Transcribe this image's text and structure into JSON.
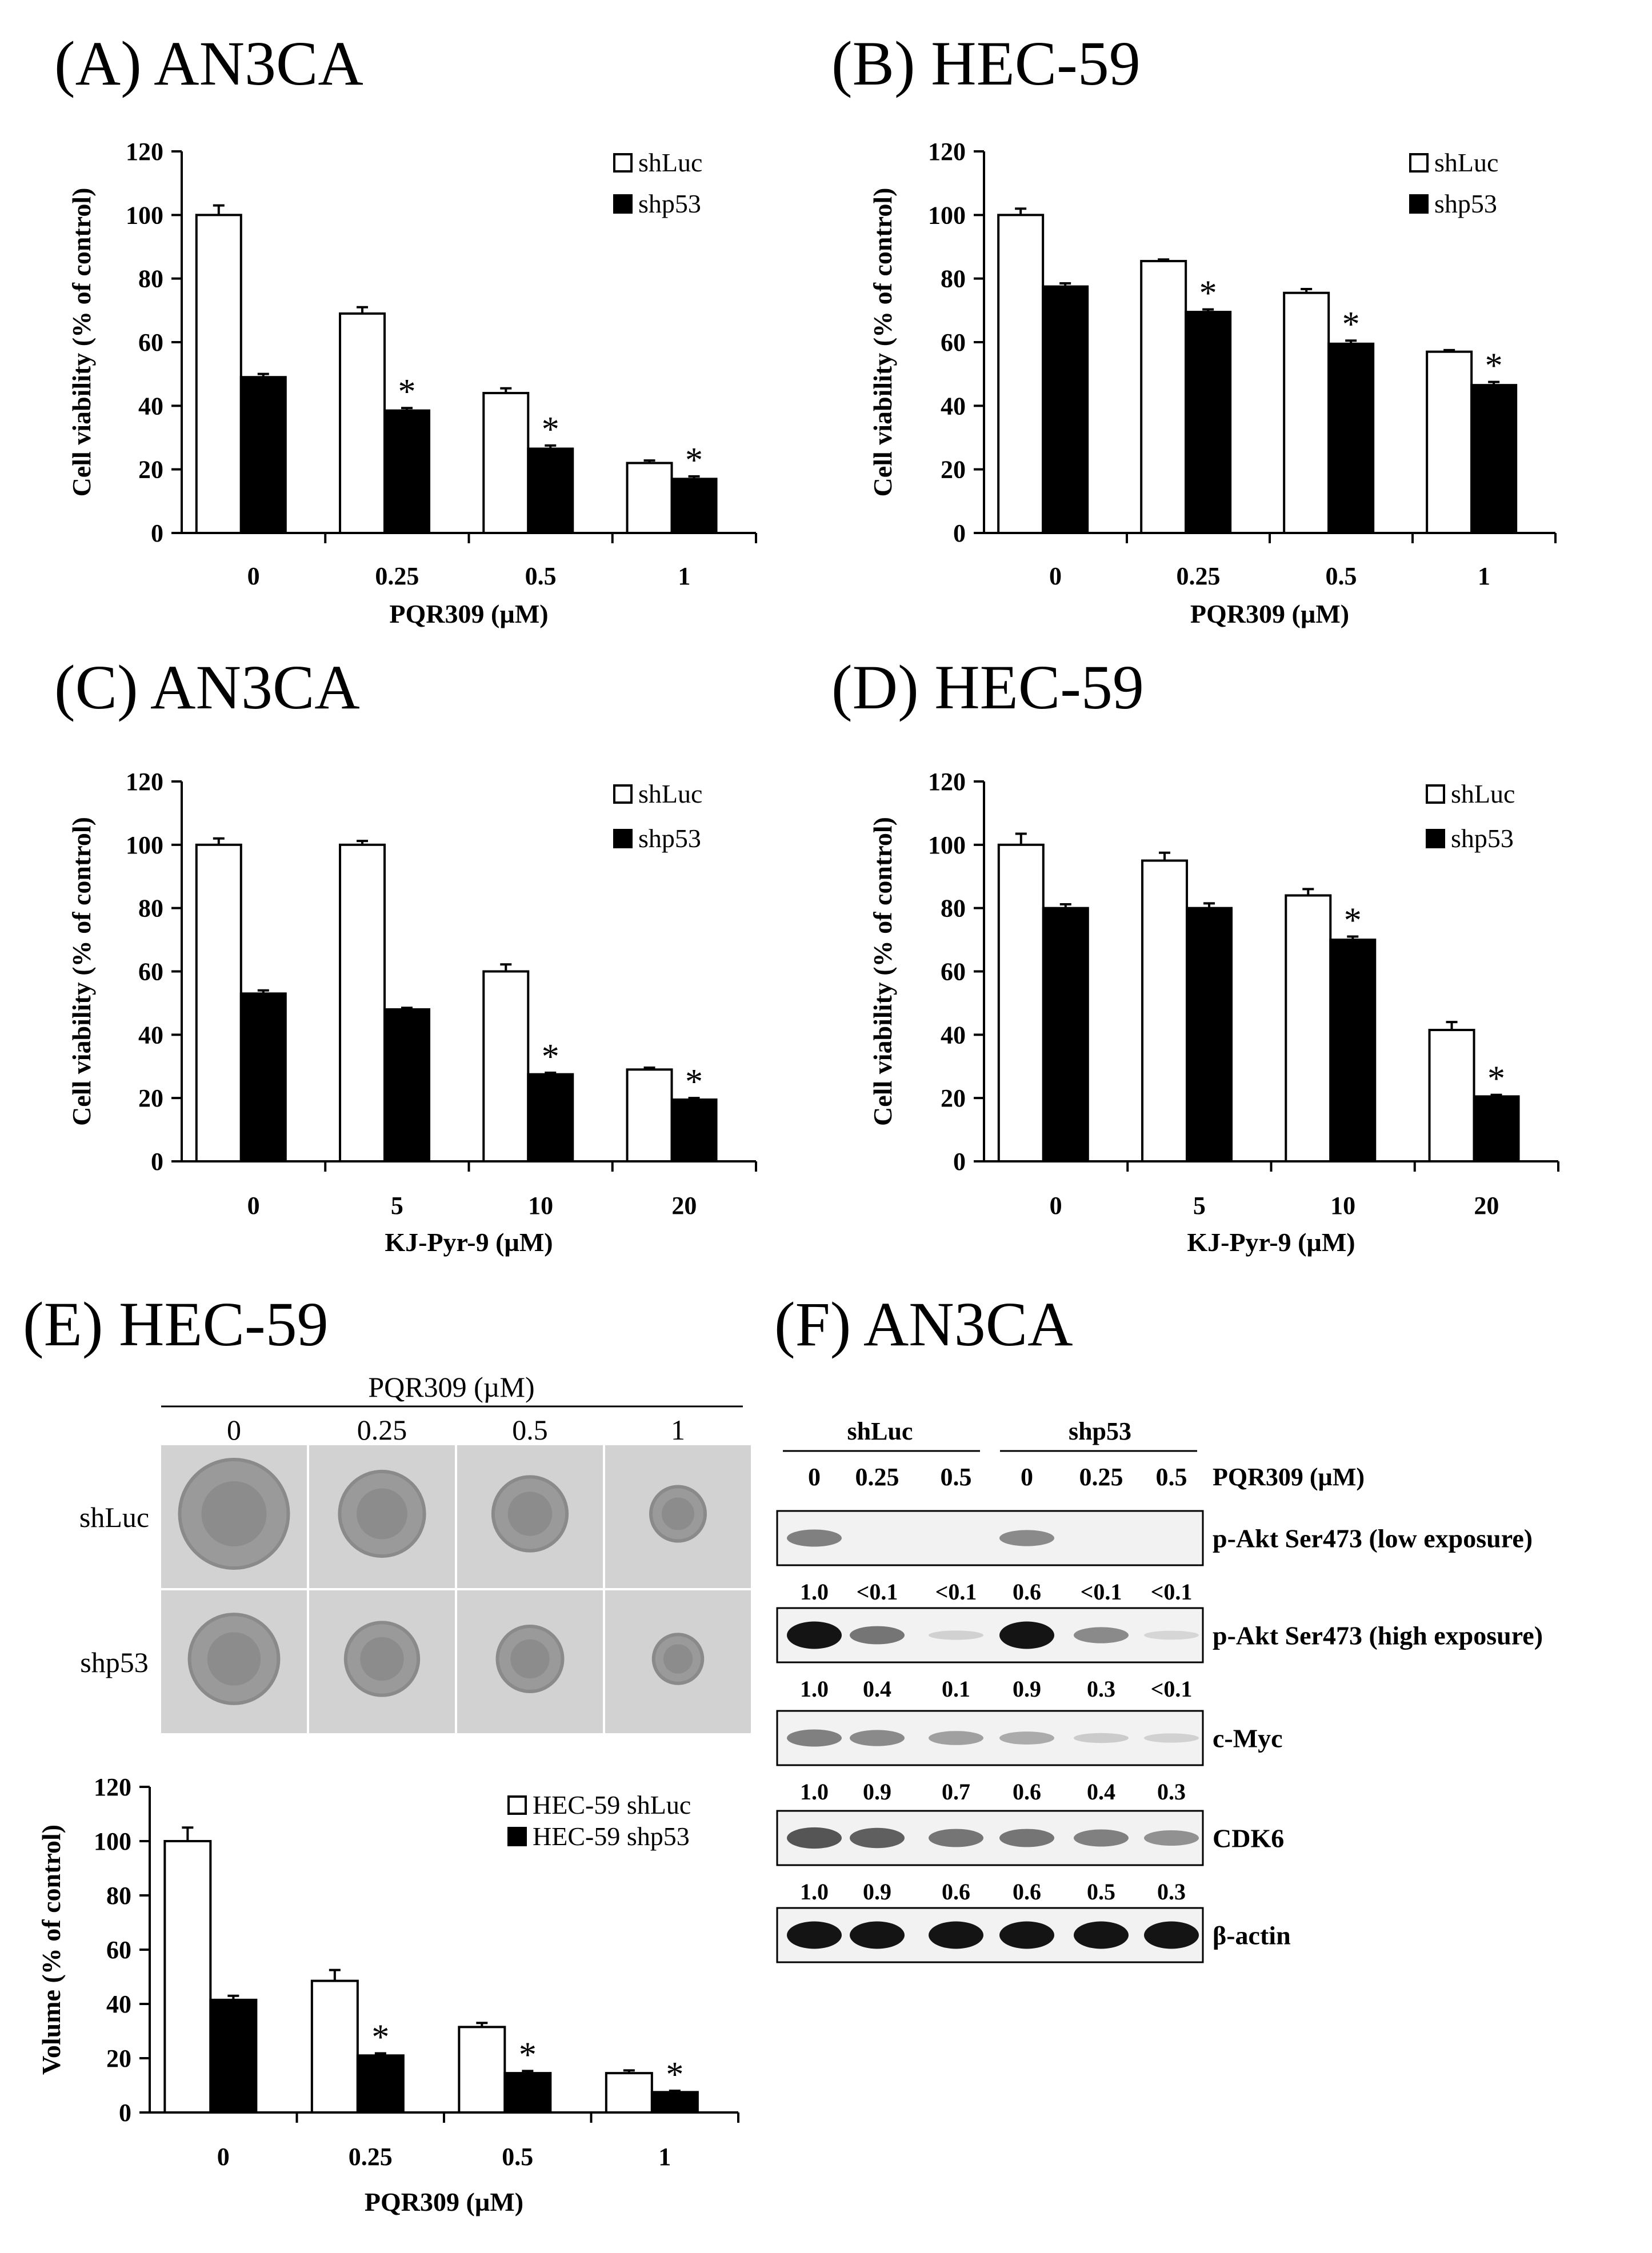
{
  "colors": {
    "bar_shLuc": "#ffffff",
    "bar_shp53": "#000000",
    "stroke": "#000000",
    "blot_background": "#f2f2f2",
    "blot_band": "#1e1e1e"
  },
  "panel_labels": [
    "(A) AN3CA",
    "(B) HEC-59",
    "(C) AN3CA",
    "(D) HEC-59",
    "(E) HEC-59",
    "(F) AN3CA"
  ],
  "significance_mark": "*",
  "chart_data": [
    {
      "type": "bar",
      "panel": "(A) AN3CA",
      "categories": [
        "0",
        "0.25",
        "0.5",
        "1"
      ],
      "xlabel": "PQR309 (µM)",
      "ylabel": "Cell viability (% of control)",
      "ylim": [
        0,
        120
      ],
      "yticks": [
        "0",
        "20",
        "40",
        "60",
        "80",
        "100",
        "120"
      ],
      "legend_position": "top-right",
      "series": [
        {
          "name": "shLuc",
          "values": [
            100,
            69,
            44,
            22
          ],
          "errors": [
            3,
            2,
            1.5,
            0.8
          ]
        },
        {
          "name": "shp53",
          "values": [
            49,
            38.5,
            26.5,
            17
          ],
          "errors": [
            1,
            0.8,
            1,
            0.8
          ]
        }
      ],
      "significant": [
        false,
        true,
        true,
        true
      ]
    },
    {
      "type": "bar",
      "panel": "(B) HEC-59",
      "categories": [
        "0",
        "0.25",
        "0.5",
        "1"
      ],
      "xlabel": "PQR309 (µM)",
      "ylabel": "Cell viability (% of control)",
      "ylim": [
        0,
        120
      ],
      "yticks": [
        "0",
        "20",
        "40",
        "60",
        "80",
        "100",
        "120"
      ],
      "legend_position": "top-right",
      "series": [
        {
          "name": "shLuc",
          "values": [
            100,
            85.5,
            75.5,
            57
          ],
          "errors": [
            2,
            0.5,
            1.2,
            0.5
          ]
        },
        {
          "name": "shp53",
          "values": [
            77.5,
            69.5,
            59.5,
            46.5
          ],
          "errors": [
            1,
            0.8,
            1,
            1
          ]
        }
      ],
      "significant": [
        false,
        true,
        true,
        true
      ]
    },
    {
      "type": "bar",
      "panel": "(C) AN3CA",
      "categories": [
        "0",
        "5",
        "10",
        "20"
      ],
      "xlabel": "KJ-Pyr-9 (µM)",
      "ylabel": "Cell viability (% of control)",
      "ylim": [
        0,
        120
      ],
      "yticks": [
        "0",
        "20",
        "40",
        "60",
        "80",
        "100",
        "120"
      ],
      "legend_position": "top-right",
      "series": [
        {
          "name": "shLuc",
          "values": [
            100,
            100,
            60,
            29
          ],
          "errors": [
            2,
            1.2,
            2.2,
            0.6
          ]
        },
        {
          "name": "shp53",
          "values": [
            53,
            48,
            27.5,
            19.5
          ],
          "errors": [
            1,
            0.5,
            0.5,
            0.5
          ]
        }
      ],
      "significant": [
        false,
        false,
        true,
        true
      ]
    },
    {
      "type": "bar",
      "panel": "(D) HEC-59",
      "categories": [
        "0",
        "5",
        "10",
        "20"
      ],
      "xlabel": "KJ-Pyr-9 (µM)",
      "ylabel": "Cell viability (% of control)",
      "ylim": [
        0,
        120
      ],
      "yticks": [
        "0",
        "20",
        "40",
        "60",
        "80",
        "100",
        "120"
      ],
      "legend_position": "top-right",
      "series": [
        {
          "name": "shLuc",
          "values": [
            100,
            95,
            84,
            41.5
          ],
          "errors": [
            3.5,
            2.5,
            2,
            2.5
          ]
        },
        {
          "name": "shp53",
          "values": [
            80,
            80,
            70,
            20.5
          ],
          "errors": [
            1.2,
            1.5,
            1,
            0.5
          ]
        }
      ],
      "significant": [
        false,
        false,
        true,
        true
      ]
    },
    {
      "type": "bar",
      "panel": "(E) HEC-59",
      "categories": [
        "0",
        "0.25",
        "0.5",
        "1"
      ],
      "xlabel": "PQR309 (µM)",
      "ylabel": "Volume (% of control)",
      "ylim": [
        0,
        120
      ],
      "yticks": [
        "0",
        "20",
        "40",
        "60",
        "80",
        "100",
        "120"
      ],
      "legend_position": "top-right",
      "series": [
        {
          "name": "HEC-59 shLuc",
          "values": [
            100,
            48.5,
            31.5,
            14.5
          ],
          "errors": [
            5,
            4,
            1.5,
            1
          ]
        },
        {
          "name": "HEC-59 shp53",
          "values": [
            41.5,
            21,
            14.5,
            7.5
          ],
          "errors": [
            1.5,
            0.8,
            0.8,
            0.5
          ]
        }
      ],
      "significant": [
        false,
        true,
        true,
        true
      ]
    }
  ],
  "spheroids": {
    "treatment_label": "PQR309 (µM)",
    "doses": [
      "0",
      "0.25",
      "0.5",
      "1"
    ],
    "rows": [
      {
        "label": "shLuc",
        "relative_size": [
          1.0,
          0.78,
          0.68,
          0.5
        ]
      },
      {
        "label": "shp53",
        "relative_size": [
          0.82,
          0.67,
          0.6,
          0.45
        ]
      }
    ]
  },
  "western_blot": {
    "groups": [
      "shLuc",
      "shp53"
    ],
    "lanes": [
      "0",
      "0.25",
      "0.5",
      "0",
      "0.25",
      "0.5"
    ],
    "treatment_label": "PQR309 (µM)",
    "blots": [
      {
        "label": "p-Akt Ser473 (low exposure)",
        "intensity": [
          0.5,
          0,
          0,
          0.45,
          0,
          0
        ],
        "quant": [
          "1.0",
          "<0.1",
          "<0.1",
          "0.6",
          "<0.1",
          "<0.1"
        ]
      },
      {
        "label": "p-Akt Ser473 (high exposure)",
        "intensity": [
          1.0,
          0.55,
          0.12,
          1.0,
          0.45,
          0.1
        ],
        "quant": [
          "1.0",
          "0.4",
          "0.1",
          "0.9",
          "0.3",
          "<0.1"
        ]
      },
      {
        "label": "c-Myc",
        "intensity": [
          0.5,
          0.45,
          0.35,
          0.3,
          0.15,
          0.12
        ],
        "quant": [
          "1.0",
          "0.9",
          "0.7",
          "0.6",
          "0.4",
          "0.3"
        ]
      },
      {
        "label": "CDK6",
        "intensity": [
          0.7,
          0.65,
          0.55,
          0.55,
          0.5,
          0.42
        ],
        "quant": [
          "1.0",
          "0.9",
          "0.6",
          "0.6",
          "0.5",
          "0.3"
        ]
      },
      {
        "label": "β-actin",
        "intensity": [
          1.0,
          1.0,
          1.0,
          1.0,
          1.0,
          1.0
        ],
        "quant": []
      }
    ]
  }
}
